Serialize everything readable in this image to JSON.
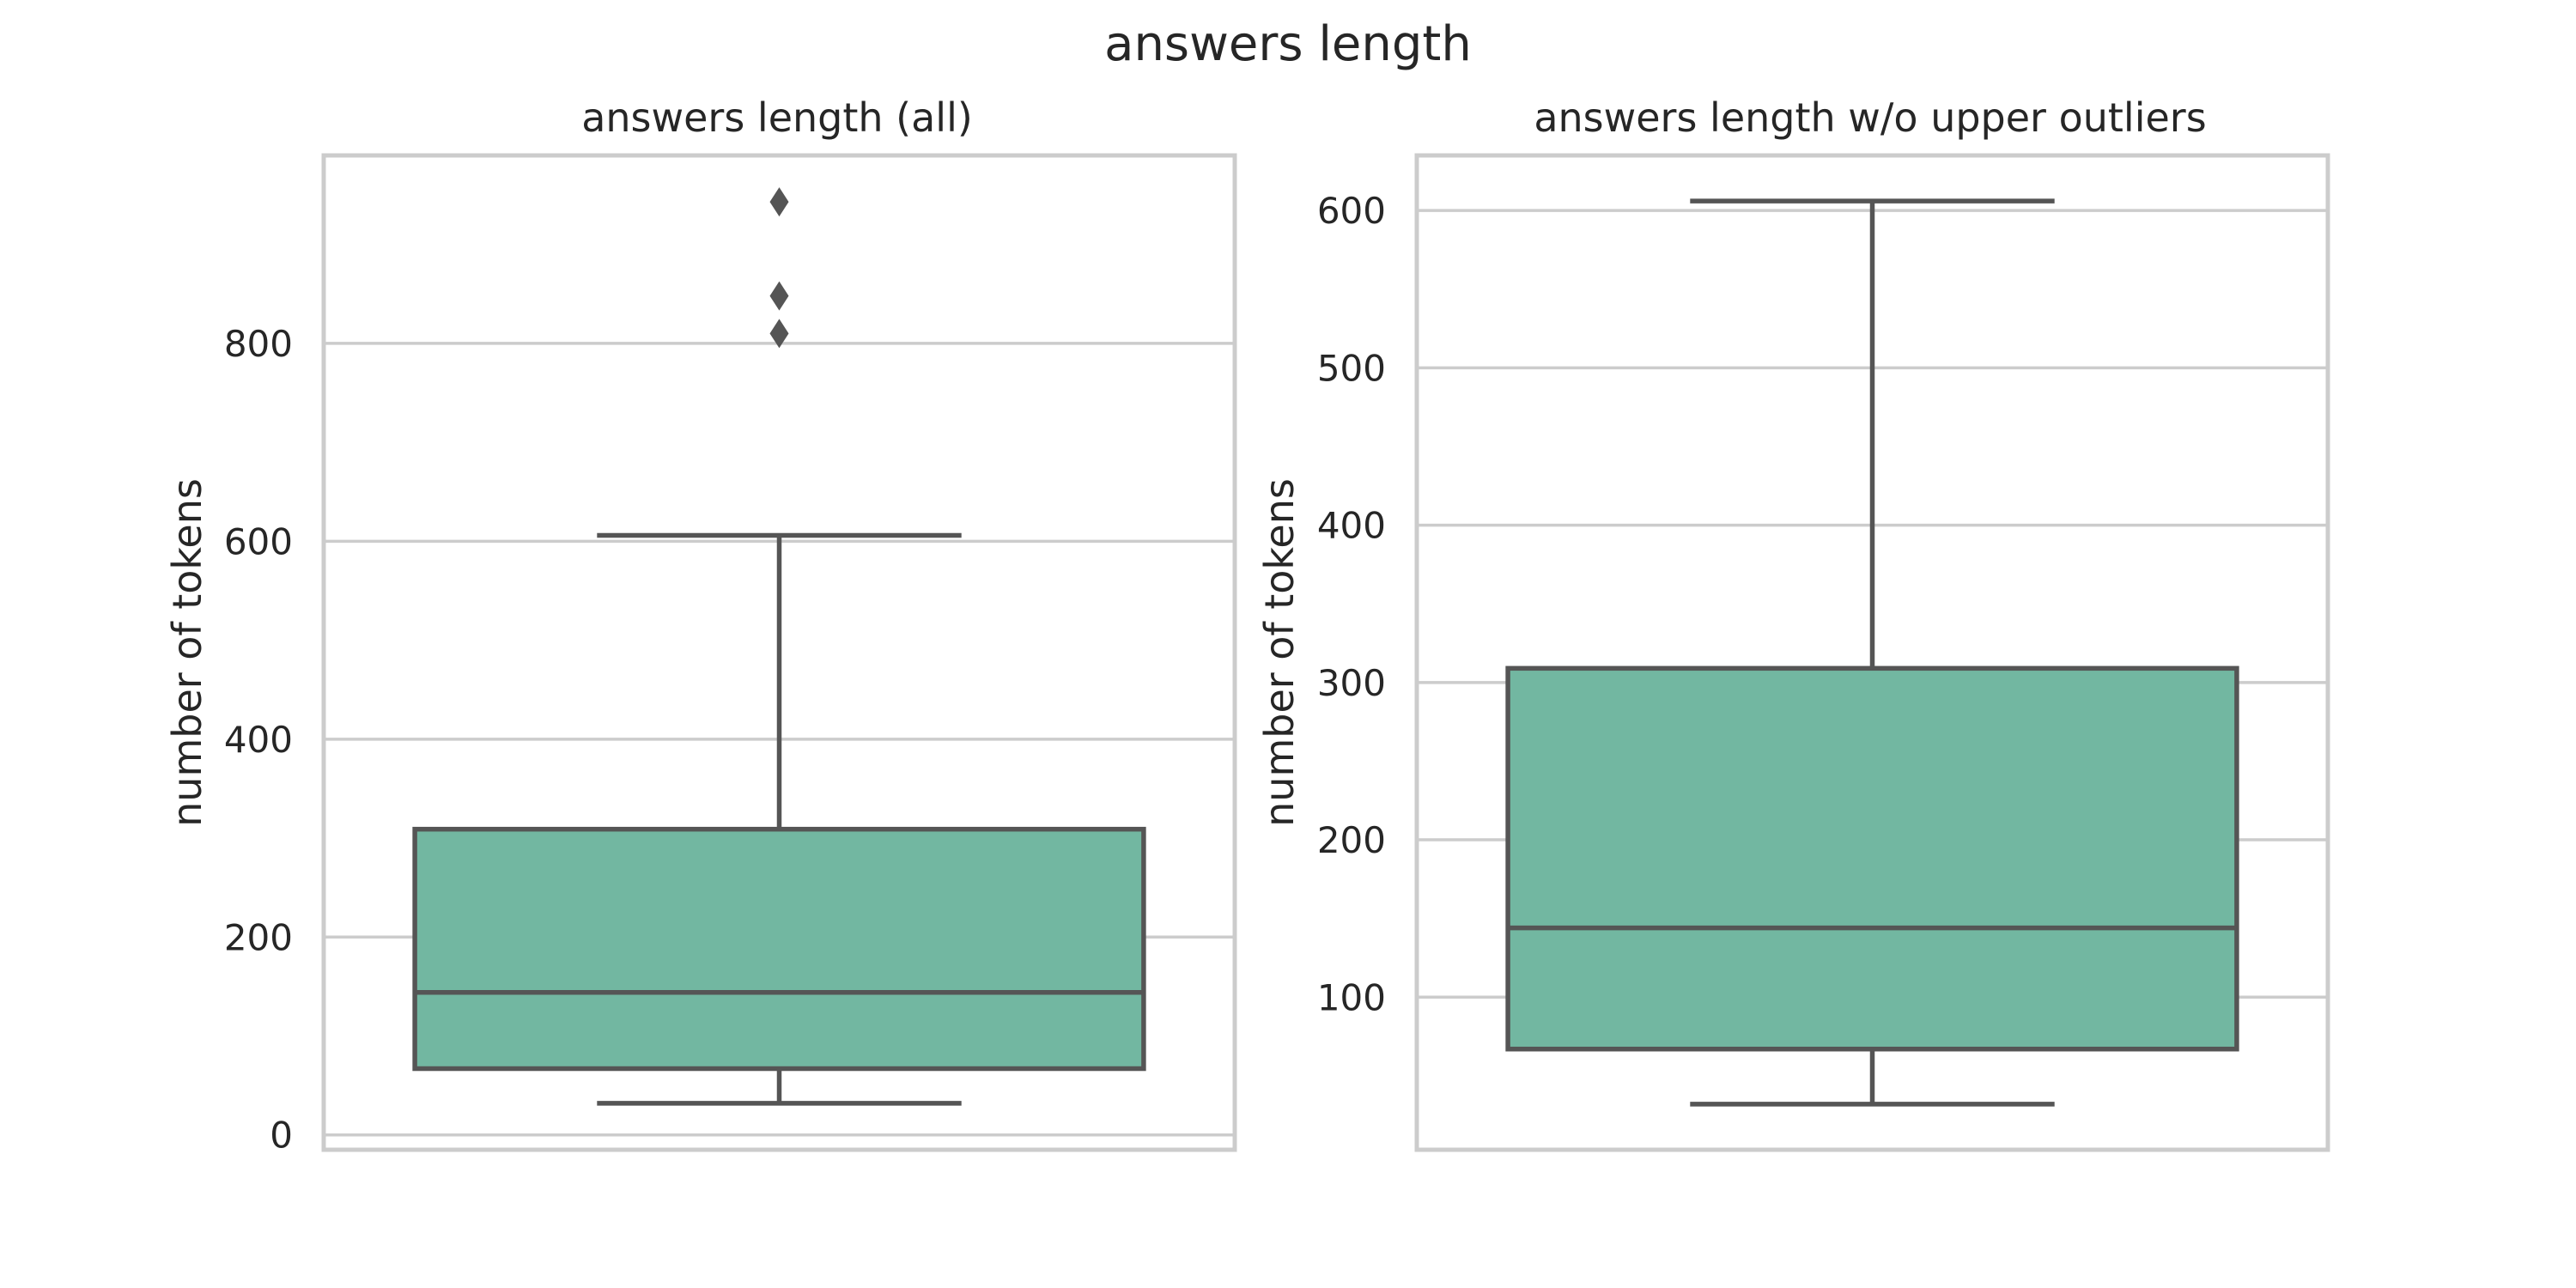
{
  "title": "answers length",
  "colors": {
    "box": "#72b7a1",
    "line": "#555555",
    "grid": "#cccccc"
  },
  "chart_data": [
    {
      "type": "boxplot",
      "title": "answers length (all)",
      "ylabel": "number of tokens",
      "xlabel": "",
      "ylim": [
        -15,
        990
      ],
      "yticks": [
        0,
        200,
        400,
        600,
        800
      ],
      "grid": true,
      "box": {
        "whisker_low": 32,
        "q1": 67,
        "median": 144,
        "q3": 309,
        "whisker_high": 606
      },
      "outliers": [
        810,
        848,
        943
      ]
    },
    {
      "type": "boxplot",
      "title": "answers length w/o upper outliers",
      "ylabel": "number of tokens",
      "xlabel": "",
      "ylim": [
        3,
        635
      ],
      "yticks": [
        100,
        200,
        300,
        400,
        500,
        600
      ],
      "grid": true,
      "box": {
        "whisker_low": 32,
        "q1": 67,
        "median": 144,
        "q3": 309,
        "whisker_high": 606
      },
      "outliers": []
    }
  ]
}
